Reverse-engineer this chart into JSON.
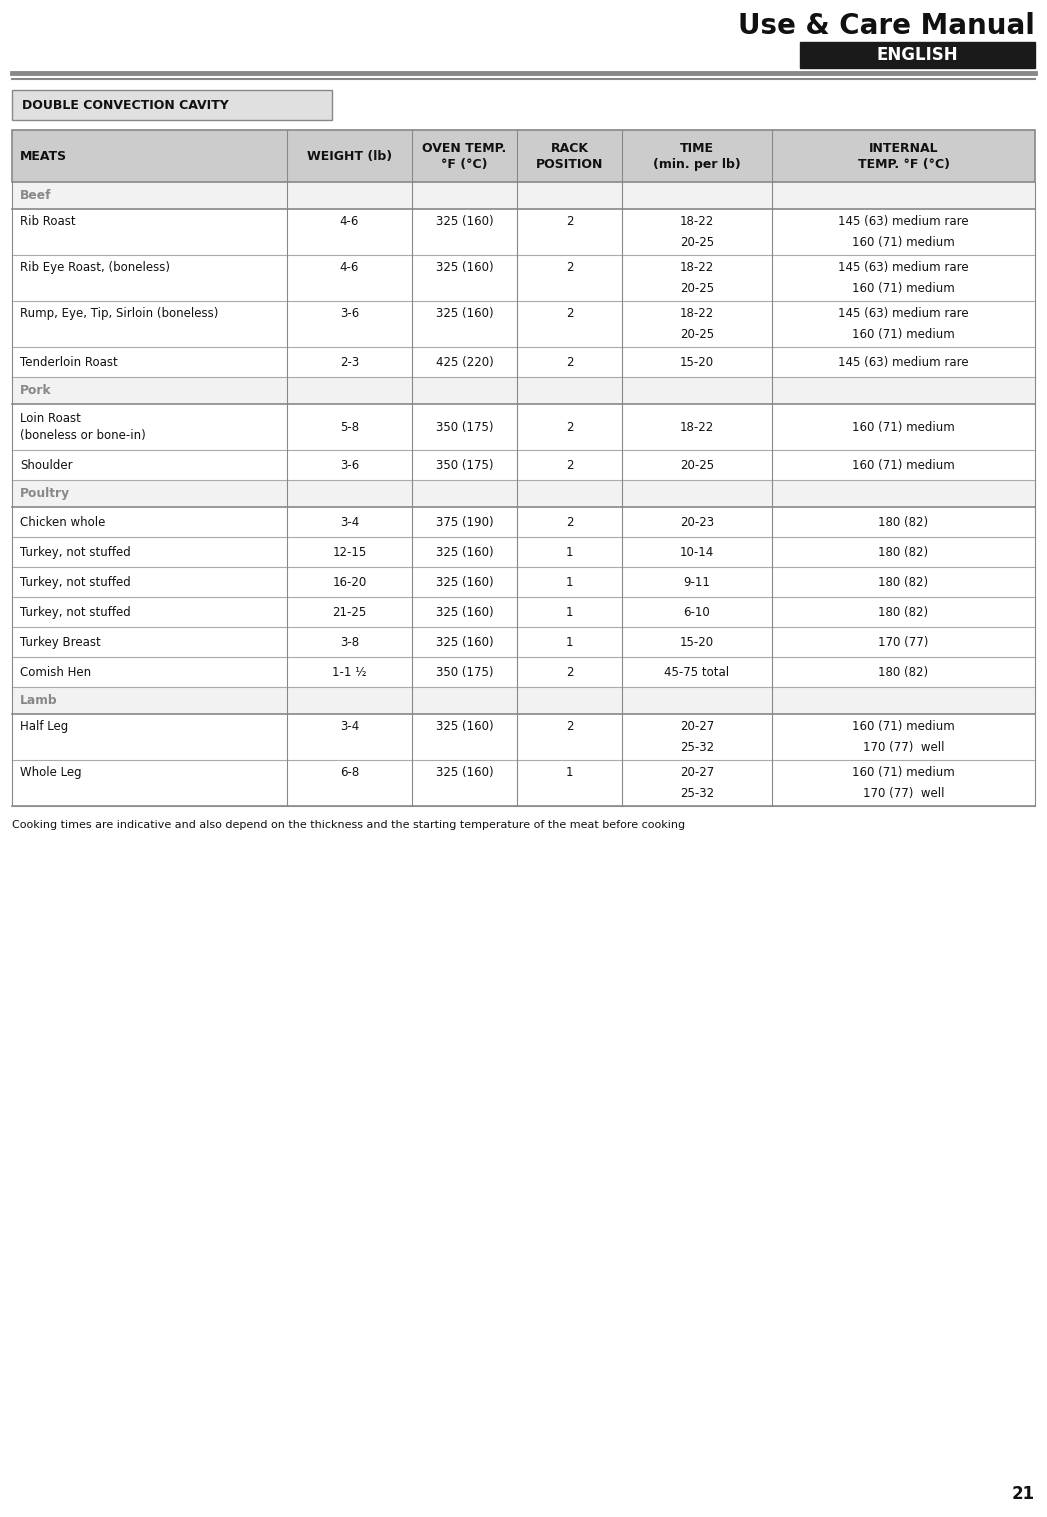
{
  "page_title": "Use & Care Manual",
  "english_label": "ENGLISH",
  "section_title": "DOUBLE CONVECTION CAVITY",
  "col_headers": [
    "MEATS",
    "WEIGHT (lb)",
    "OVEN TEMP.\n°F (°C)",
    "RACK\nPOSITION",
    "TIME\n(min. per lb)",
    "INTERNAL\nTEMP. °F (°C)"
  ],
  "col_aligns": [
    "left",
    "center",
    "center",
    "center",
    "center",
    "center"
  ],
  "footer_note": "Cooking times are indicative and also depend on the thickness and the starting temperature of the meat before cooking",
  "category_color": "#888888",
  "rows": [
    {
      "type": "category",
      "col0": "Beef",
      "col1": "",
      "col2": "",
      "col3": "",
      "col4": "",
      "col5": ""
    },
    {
      "type": "data",
      "col0": "Rib Roast",
      "col1": "4-6",
      "col2": "325 (160)",
      "col3": "2",
      "col4": "18-22",
      "col5": "145 (63) medium rare",
      "col4b": "20-25",
      "col5b": "160 (71) medium"
    },
    {
      "type": "data",
      "col0": "Rib Eye Roast, (boneless)",
      "col1": "4-6",
      "col2": "325 (160)",
      "col3": "2",
      "col4": "18-22",
      "col5": "145 (63) medium rare",
      "col4b": "20-25",
      "col5b": "160 (71) medium"
    },
    {
      "type": "data",
      "col0": "Rump, Eye, Tip, Sirloin (boneless)",
      "col1": "3-6",
      "col2": "325 (160)",
      "col3": "2",
      "col4": "18-22",
      "col5": "145 (63) medium rare",
      "col4b": "20-25",
      "col5b": "160 (71) medium"
    },
    {
      "type": "data",
      "col0": "Tenderloin Roast",
      "col1": "2-3",
      "col2": "425 (220)",
      "col3": "2",
      "col4": "15-20",
      "col5": "145 (63) medium rare",
      "col4b": "",
      "col5b": ""
    },
    {
      "type": "category",
      "col0": "Pork",
      "col1": "",
      "col2": "",
      "col3": "",
      "col4": "",
      "col5": "",
      "col4b": "",
      "col5b": ""
    },
    {
      "type": "data_tall",
      "col0": "Loin Roast\n(boneless or bone-in)",
      "col1": "5-8",
      "col2": "350 (175)",
      "col3": "2",
      "col4": "18-22",
      "col5": "160 (71) medium",
      "col4b": "",
      "col5b": ""
    },
    {
      "type": "data",
      "col0": "Shoulder",
      "col1": "3-6",
      "col2": "350 (175)",
      "col3": "2",
      "col4": "20-25",
      "col5": "160 (71) medium",
      "col4b": "",
      "col5b": ""
    },
    {
      "type": "category",
      "col0": "Poultry",
      "col1": "",
      "col2": "",
      "col3": "",
      "col4": "",
      "col5": "",
      "col4b": "",
      "col5b": ""
    },
    {
      "type": "data",
      "col0": "Chicken whole",
      "col1": "3-4",
      "col2": "375 (190)",
      "col3": "2",
      "col4": "20-23",
      "col5": "180 (82)",
      "col4b": "",
      "col5b": ""
    },
    {
      "type": "data",
      "col0": "Turkey, not stuffed",
      "col1": "12-15",
      "col2": "325 (160)",
      "col3": "1",
      "col4": "10-14",
      "col5": "180 (82)",
      "col4b": "",
      "col5b": ""
    },
    {
      "type": "data",
      "col0": "Turkey, not stuffed",
      "col1": "16-20",
      "col2": "325 (160)",
      "col3": "1",
      "col4": "9-11",
      "col5": "180 (82)",
      "col4b": "",
      "col5b": ""
    },
    {
      "type": "data",
      "col0": "Turkey, not stuffed",
      "col1": "21-25",
      "col2": "325 (160)",
      "col3": "1",
      "col4": "6-10",
      "col5": "180 (82)",
      "col4b": "",
      "col5b": ""
    },
    {
      "type": "data",
      "col0": "Turkey Breast",
      "col1": "3-8",
      "col2": "325 (160)",
      "col3": "1",
      "col4": "15-20",
      "col5": "170 (77)",
      "col4b": "",
      "col5b": ""
    },
    {
      "type": "data",
      "col0": "Comish Hen",
      "col1": "1-1 ½",
      "col2": "350 (175)",
      "col3": "2",
      "col4": "45-75 total",
      "col5": "180 (82)",
      "col4b": "",
      "col5b": ""
    },
    {
      "type": "category",
      "col0": "Lamb",
      "col1": "",
      "col2": "",
      "col3": "",
      "col4": "",
      "col5": "",
      "col4b": "",
      "col5b": ""
    },
    {
      "type": "data",
      "col0": "Half Leg",
      "col1": "3-4",
      "col2": "325 (160)",
      "col3": "2",
      "col4": "20-27",
      "col5": "160 (71) medium",
      "col4b": "25-32",
      "col5b": "170 (77)  well"
    },
    {
      "type": "data",
      "col0": "Whole Leg",
      "col1": "6-8",
      "col2": "325 (160)",
      "col3": "1",
      "col4": "20-27",
      "col5": "160 (71) medium",
      "col4b": "25-32",
      "col5b": "170 (77)  well"
    }
  ],
  "bg_color": "#ffffff",
  "header_bg": "#cccccc",
  "cat_bg": "#f2f2f2",
  "border_color": "#888888",
  "page_num": "21"
}
